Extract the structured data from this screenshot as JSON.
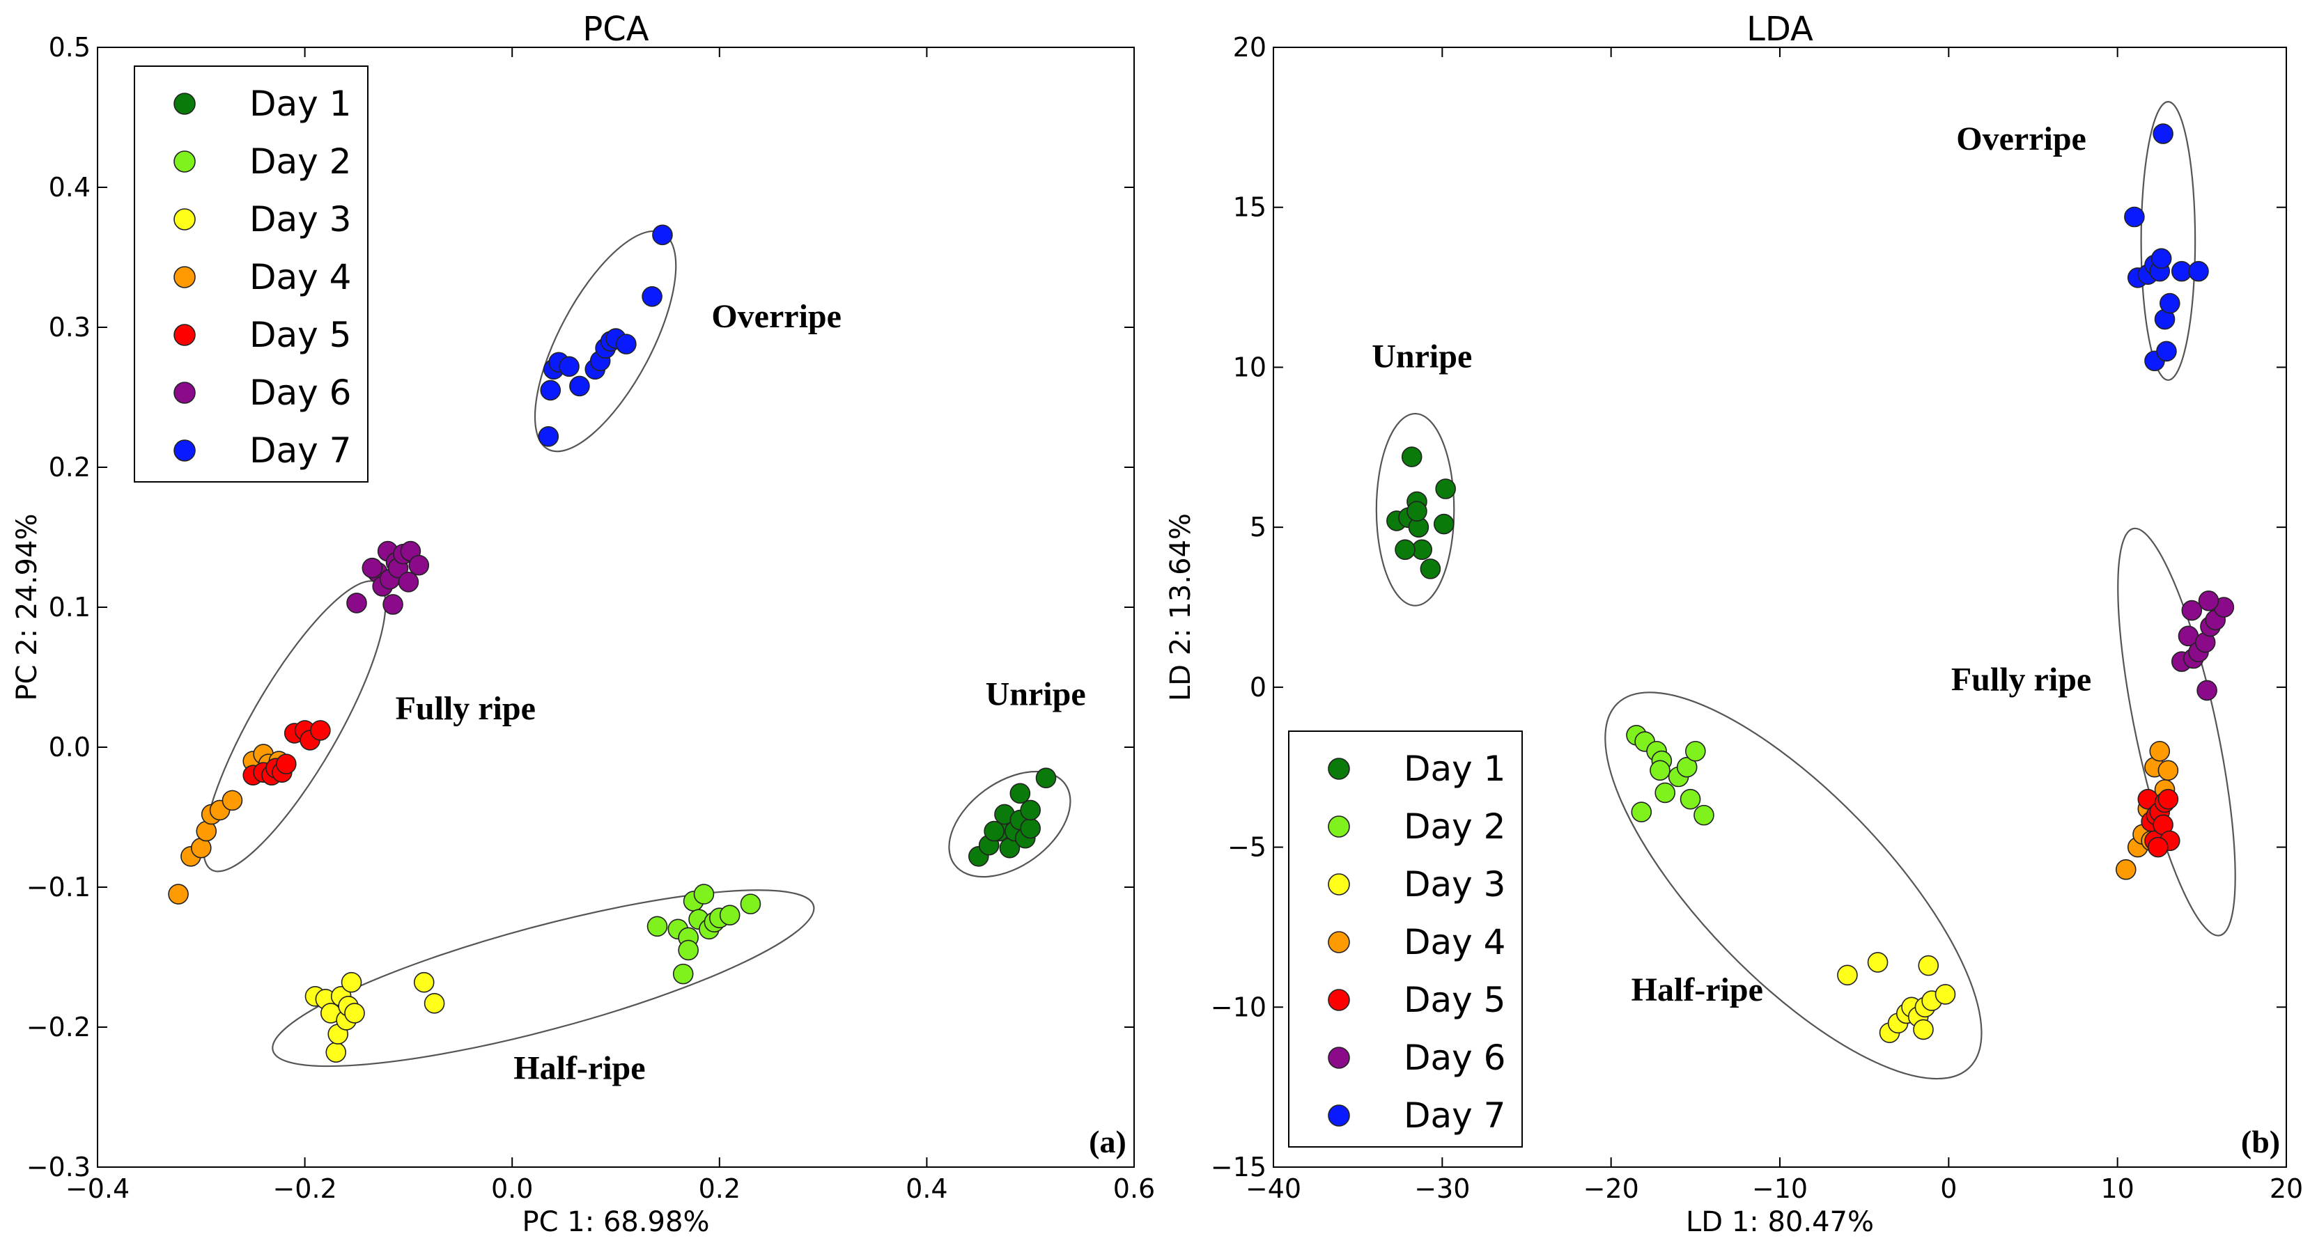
{
  "legend_entries": [
    {
      "label": "Day 1",
      "color": "#0a7a0a"
    },
    {
      "label": "Day 2",
      "color": "#7ff21d"
    },
    {
      "label": "Day 3",
      "color": "#ffff1a"
    },
    {
      "label": "Day 4",
      "color": "#ff9a00"
    },
    {
      "label": "Day 5",
      "color": "#ff0000"
    },
    {
      "label": "Day 6",
      "color": "#8a0a8a"
    },
    {
      "label": "Day 7",
      "color": "#0a1aff"
    }
  ],
  "chart_data": [
    {
      "type": "scatter",
      "title": "PCA",
      "panel_label": "(a)",
      "xlabel": "PC 1: 68.98%",
      "ylabel": "PC 2: 24.94%",
      "xlim": [
        -0.4,
        0.6
      ],
      "ylim": [
        -0.3,
        0.5
      ],
      "xticks": [
        -0.4,
        -0.2,
        0.0,
        0.2,
        0.4,
        0.6
      ],
      "yticks": [
        -0.3,
        -0.2,
        -0.1,
        0.0,
        0.1,
        0.2,
        0.3,
        0.4,
        0.5
      ],
      "xtick_labels": [
        "−0.4",
        "−0.2",
        "0.0",
        "0.2",
        "0.4",
        "0.6"
      ],
      "ytick_labels": [
        "−0.3",
        "−0.2",
        "−0.1",
        "0.0",
        "0.1",
        "0.2",
        "0.3",
        "0.4",
        "0.5"
      ],
      "legend_position": "upper-left",
      "series": [
        {
          "name": "Day 1",
          "points": [
            [
              0.45,
              -0.078
            ],
            [
              0.46,
              -0.07
            ],
            [
              0.47,
              -0.06
            ],
            [
              0.475,
              -0.048
            ],
            [
              0.48,
              -0.072
            ],
            [
              0.485,
              -0.06
            ],
            [
              0.49,
              -0.052
            ],
            [
              0.495,
              -0.065
            ],
            [
              0.5,
              -0.058
            ],
            [
              0.49,
              -0.033
            ],
            [
              0.5,
              -0.045
            ],
            [
              0.515,
              -0.022
            ],
            [
              0.465,
              -0.06
            ]
          ]
        },
        {
          "name": "Day 2",
          "points": [
            [
              0.14,
              -0.128
            ],
            [
              0.16,
              -0.13
            ],
            [
              0.165,
              -0.162
            ],
            [
              0.17,
              -0.136
            ],
            [
              0.175,
              -0.11
            ],
            [
              0.18,
              -0.123
            ],
            [
              0.185,
              -0.105
            ],
            [
              0.19,
              -0.13
            ],
            [
              0.195,
              -0.125
            ],
            [
              0.2,
              -0.122
            ],
            [
              0.21,
              -0.12
            ],
            [
              0.23,
              -0.112
            ],
            [
              0.17,
              -0.145
            ]
          ]
        },
        {
          "name": "Day 3",
          "points": [
            [
              -0.19,
              -0.178
            ],
            [
              -0.18,
              -0.18
            ],
            [
              -0.175,
              -0.19
            ],
            [
              -0.17,
              -0.218
            ],
            [
              -0.168,
              -0.205
            ],
            [
              -0.165,
              -0.178
            ],
            [
              -0.16,
              -0.195
            ],
            [
              -0.158,
              -0.185
            ],
            [
              -0.155,
              -0.168
            ],
            [
              -0.152,
              -0.19
            ],
            [
              -0.085,
              -0.168
            ],
            [
              -0.075,
              -0.183
            ]
          ]
        },
        {
          "name": "Day 4",
          "points": [
            [
              -0.322,
              -0.105
            ],
            [
              -0.31,
              -0.078
            ],
            [
              -0.3,
              -0.072
            ],
            [
              -0.295,
              -0.06
            ],
            [
              -0.29,
              -0.048
            ],
            [
              -0.282,
              -0.045
            ],
            [
              -0.27,
              -0.038
            ],
            [
              -0.25,
              -0.01
            ],
            [
              -0.24,
              -0.005
            ],
            [
              -0.235,
              -0.012
            ],
            [
              -0.225,
              -0.01
            ]
          ]
        },
        {
          "name": "Day 5",
          "points": [
            [
              -0.25,
              -0.02
            ],
            [
              -0.24,
              -0.018
            ],
            [
              -0.232,
              -0.02
            ],
            [
              -0.228,
              -0.015
            ],
            [
              -0.222,
              -0.018
            ],
            [
              -0.218,
              -0.012
            ],
            [
              -0.21,
              0.01
            ],
            [
              -0.2,
              0.012
            ],
            [
              -0.195,
              0.005
            ],
            [
              -0.185,
              0.012
            ]
          ]
        },
        {
          "name": "Day 6",
          "points": [
            [
              -0.15,
              0.103
            ],
            [
              -0.13,
              0.125
            ],
            [
              -0.125,
              0.115
            ],
            [
              -0.12,
              0.14
            ],
            [
              -0.118,
              0.12
            ],
            [
              -0.115,
              0.102
            ],
            [
              -0.112,
              0.132
            ],
            [
              -0.11,
              0.128
            ],
            [
              -0.105,
              0.138
            ],
            [
              -0.1,
              0.118
            ],
            [
              -0.098,
              0.14
            ],
            [
              -0.09,
              0.13
            ],
            [
              -0.135,
              0.128
            ]
          ]
        },
        {
          "name": "Day 7",
          "points": [
            [
              0.035,
              0.222
            ],
            [
              0.037,
              0.255
            ],
            [
              0.04,
              0.27
            ],
            [
              0.045,
              0.275
            ],
            [
              0.055,
              0.272
            ],
            [
              0.065,
              0.258
            ],
            [
              0.08,
              0.27
            ],
            [
              0.085,
              0.276
            ],
            [
              0.09,
              0.285
            ],
            [
              0.095,
              0.29
            ],
            [
              0.1,
              0.292
            ],
            [
              0.11,
              0.288
            ],
            [
              0.135,
              0.322
            ],
            [
              0.145,
              0.366
            ]
          ]
        }
      ],
      "cluster_labels": [
        {
          "text": "Overripe",
          "x": 0.255,
          "y": 0.3
        },
        {
          "text": "Fully ripe",
          "x": -0.045,
          "y": 0.02
        },
        {
          "text": "Unripe",
          "x": 0.505,
          "y": 0.03
        },
        {
          "text": "Half-ripe",
          "x": 0.065,
          "y": -0.237
        }
      ],
      "ellipses": [
        {
          "cx": 0.09,
          "cy": 0.29,
          "rx": 0.118,
          "ry": 0.033,
          "angle_deg": 62
        },
        {
          "cx": -0.21,
          "cy": 0.015,
          "rx": 0.16,
          "ry": 0.031,
          "angle_deg": 60
        },
        {
          "cx": 0.48,
          "cy": -0.055,
          "rx": 0.066,
          "ry": 0.03,
          "angle_deg": 36
        },
        {
          "cx": 0.03,
          "cy": -0.165,
          "rx": 0.27,
          "ry": 0.037,
          "angle_deg": 15
        }
      ]
    },
    {
      "type": "scatter",
      "title": "LDA",
      "panel_label": "(b)",
      "xlabel": "LD 1: 80.47%",
      "ylabel": "LD 2: 13.64%",
      "xlim": [
        -40,
        20
      ],
      "ylim": [
        -15,
        20
      ],
      "xticks": [
        -40,
        -30,
        -20,
        -10,
        0,
        10,
        20
      ],
      "yticks": [
        -15,
        -10,
        -5,
        0,
        5,
        10,
        15,
        20
      ],
      "xtick_labels": [
        "−40",
        "−30",
        "−20",
        "−10",
        "0",
        "10",
        "20"
      ],
      "ytick_labels": [
        "−15",
        "−10",
        "−5",
        "0",
        "5",
        "10",
        "15",
        "20"
      ],
      "legend_position": "lower-left",
      "series": [
        {
          "name": "Day 1",
          "points": [
            [
              -32.7,
              5.2
            ],
            [
              -32,
              5.3
            ],
            [
              -31.8,
              7.2
            ],
            [
              -31.5,
              5.8
            ],
            [
              -31.4,
              5.0
            ],
            [
              -31.2,
              4.3
            ],
            [
              -32.2,
              4.3
            ],
            [
              -30.7,
              3.7
            ],
            [
              -29.8,
              6.2
            ],
            [
              -29.9,
              5.1
            ],
            [
              -31.5,
              5.5
            ]
          ]
        },
        {
          "name": "Day 2",
          "points": [
            [
              -18.5,
              -1.5
            ],
            [
              -18,
              -1.7
            ],
            [
              -17.3,
              -2.0
            ],
            [
              -17,
              -2.3
            ],
            [
              -16.8,
              -3.3
            ],
            [
              -16,
              -2.8
            ],
            [
              -15.5,
              -2.5
            ],
            [
              -15.3,
              -3.5
            ],
            [
              -15,
              -2.0
            ],
            [
              -14.5,
              -4.0
            ],
            [
              -18.2,
              -3.9
            ],
            [
              -17.1,
              -2.6
            ]
          ]
        },
        {
          "name": "Day 3",
          "points": [
            [
              -6,
              -9.0
            ],
            [
              -4.2,
              -8.6
            ],
            [
              -3.5,
              -10.8
            ],
            [
              -3,
              -10.5
            ],
            [
              -2.5,
              -10.2
            ],
            [
              -2.2,
              -10.0
            ],
            [
              -1.8,
              -10.3
            ],
            [
              -1.5,
              -10.7
            ],
            [
              -1.4,
              -10.0
            ],
            [
              -1,
              -9.8
            ],
            [
              -1.2,
              -8.7
            ],
            [
              -0.2,
              -9.6
            ]
          ]
        },
        {
          "name": "Day 4",
          "points": [
            [
              10.5,
              -5.7
            ],
            [
              11.2,
              -5.0
            ],
            [
              11.5,
              -4.6
            ],
            [
              11.8,
              -3.8
            ],
            [
              12.2,
              -2.5
            ],
            [
              12.5,
              -2.0
            ],
            [
              12.8,
              -3.2
            ],
            [
              13,
              -2.6
            ],
            [
              12,
              -4.8
            ]
          ]
        },
        {
          "name": "Day 5",
          "points": [
            [
              11.8,
              -3.5
            ],
            [
              12,
              -4.2
            ],
            [
              12.2,
              -4.8
            ],
            [
              12.3,
              -4.0
            ],
            [
              12.5,
              -3.9
            ],
            [
              12.7,
              -4.3
            ],
            [
              12.8,
              -3.6
            ],
            [
              13,
              -3.5
            ],
            [
              13.1,
              -4.8
            ],
            [
              12.4,
              -5.0
            ]
          ]
        },
        {
          "name": "Day 6",
          "points": [
            [
              13.8,
              0.8
            ],
            [
              14.2,
              1.6
            ],
            [
              14.4,
              2.4
            ],
            [
              14.5,
              0.9
            ],
            [
              14.8,
              1.1
            ],
            [
              15.2,
              1.4
            ],
            [
              15.5,
              1.9
            ],
            [
              15.8,
              2.1
            ],
            [
              16.3,
              2.5
            ],
            [
              15.4,
              2.7
            ],
            [
              15.3,
              -0.1
            ]
          ]
        },
        {
          "name": "Day 7",
          "points": [
            [
              11,
              14.7
            ],
            [
              11.2,
              12.8
            ],
            [
              11.8,
              12.9
            ],
            [
              12.2,
              13.2
            ],
            [
              12.5,
              13.0
            ],
            [
              12.6,
              13.4
            ],
            [
              12.7,
              17.3
            ],
            [
              12.8,
              11.5
            ],
            [
              13.1,
              12.0
            ],
            [
              12.2,
              10.2
            ],
            [
              12.9,
              10.5
            ],
            [
              13.8,
              13.0
            ],
            [
              14.8,
              13.0
            ]
          ]
        }
      ],
      "cluster_labels": [
        {
          "text": "Overripe",
          "x": 4.3,
          "y": 16.8
        },
        {
          "text": "Unripe",
          "x": -31.2,
          "y": 10.0
        },
        {
          "text": "Fully ripe",
          "x": 4.3,
          "y": -0.1
        },
        {
          "text": "Half-ripe",
          "x": -14.9,
          "y": -9.8
        }
      ],
      "ellipses": [
        {
          "cx": 13.0,
          "cy": 13.95,
          "rx": 1.6,
          "ry": 4.35,
          "angle_deg": 0
        },
        {
          "cx": -31.6,
          "cy": 5.55,
          "rx": 2.3,
          "ry": 3.0,
          "angle_deg": 0
        },
        {
          "cx": 13.5,
          "cy": -1.4,
          "rx": 2.4,
          "ry": 6.5,
          "angle_deg": 12
        },
        {
          "cx": -9.2,
          "cy": -6.2,
          "rx": 15.0,
          "ry": 2.9,
          "angle_deg": -46
        }
      ]
    }
  ]
}
